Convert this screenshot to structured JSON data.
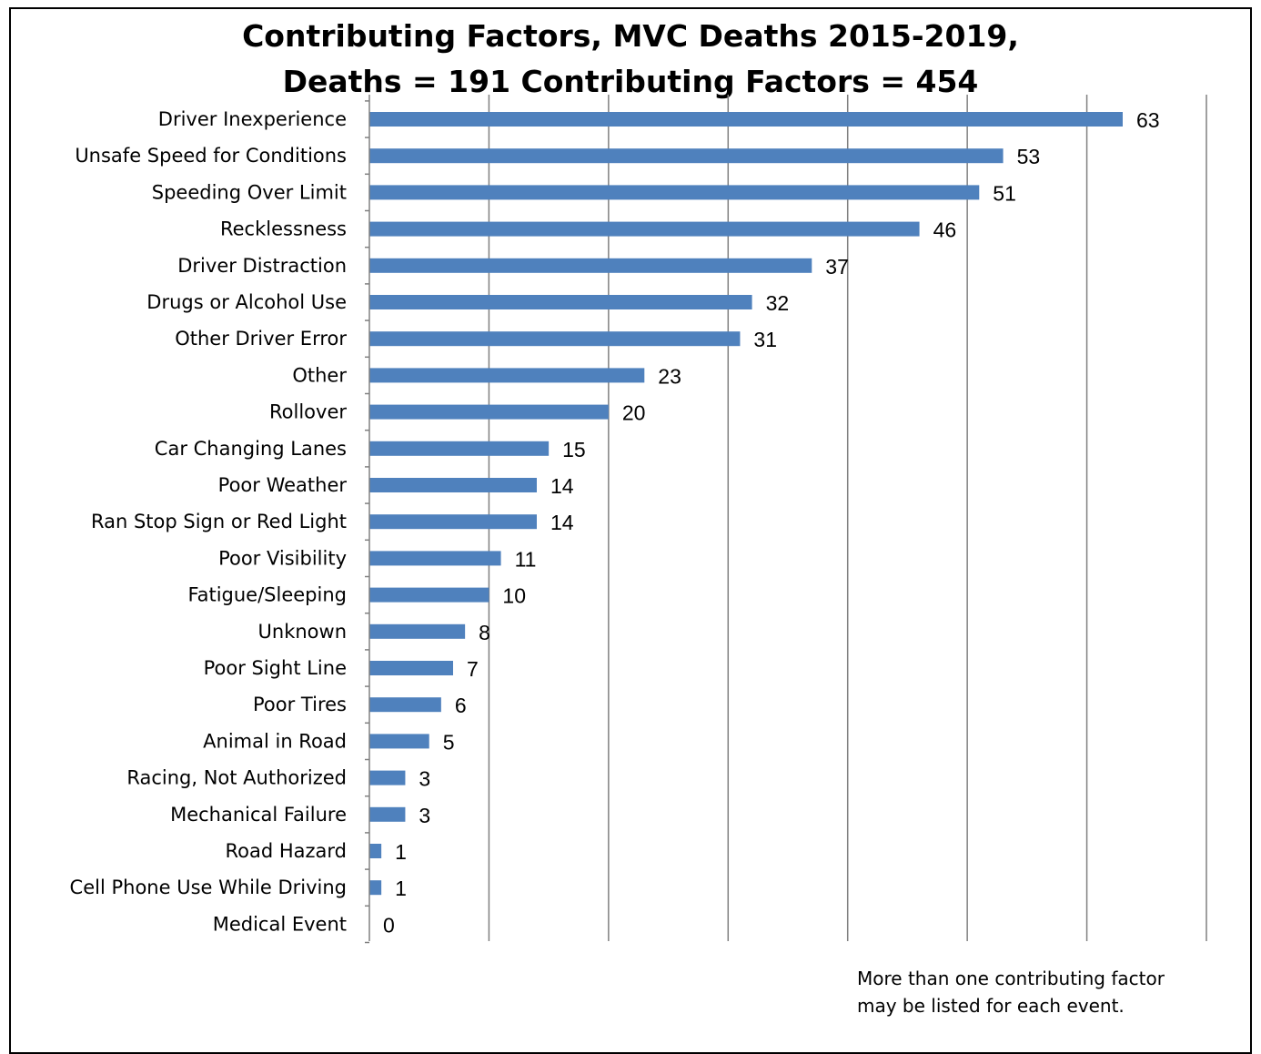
{
  "chart_data": {
    "type": "bar",
    "orientation": "horizontal",
    "title_line1": "Contributing Factors, MVC Deaths 2015-2019,",
    "title_line2": "Deaths = 191 Contributing Factors = 454",
    "categories": [
      "Driver Inexperience",
      "Unsafe Speed for Conditions",
      "Speeding Over Limit",
      "Recklessness",
      "Driver Distraction",
      "Drugs or Alcohol Use",
      "Other Driver Error",
      "Other",
      "Rollover",
      "Car Changing Lanes",
      "Poor Weather",
      "Ran Stop Sign or Red Light",
      "Poor Visibility",
      "Fatigue/Sleeping",
      "Unknown",
      "Poor Sight Line",
      "Poor Tires",
      "Animal in Road",
      "Racing, Not Authorized",
      "Mechanical Failure",
      "Road Hazard",
      "Cell Phone Use While Driving",
      "Medical Event"
    ],
    "values": [
      63,
      53,
      51,
      46,
      37,
      32,
      31,
      23,
      20,
      15,
      14,
      14,
      11,
      10,
      8,
      7,
      6,
      5,
      3,
      3,
      1,
      1,
      0
    ],
    "xlim": [
      0,
      70
    ],
    "grid": true,
    "legend": false,
    "bar_color": "#4F81BD",
    "grid_color": "#808080"
  },
  "note_line1": "More than one contributing factor",
  "note_line2": "may be listed for each event."
}
